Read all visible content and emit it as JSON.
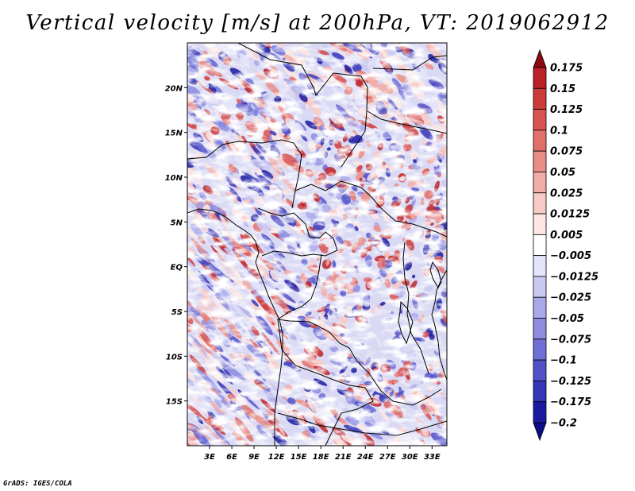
{
  "map": {
    "title": "Vertical velocity [m/s] at 200hPa, VT: 2019062912",
    "variable": "Vertical velocity",
    "units": "m/s",
    "level": "200hPa",
    "valid_time": "2019062912",
    "lat_range": [
      -20,
      25
    ],
    "lon_range": [
      0,
      35
    ],
    "lat_labels": [
      {
        "value": 20,
        "label": "20N"
      },
      {
        "value": 15,
        "label": "15N"
      },
      {
        "value": 10,
        "label": "10N"
      },
      {
        "value": 5,
        "label": "5N"
      },
      {
        "value": 0,
        "label": "EQ"
      },
      {
        "value": -5,
        "label": "5S"
      },
      {
        "value": -10,
        "label": "10S"
      },
      {
        "value": -15,
        "label": "15S"
      }
    ],
    "lon_labels": [
      {
        "value": 3,
        "label": "3E"
      },
      {
        "value": 6,
        "label": "6E"
      },
      {
        "value": 9,
        "label": "9E"
      },
      {
        "value": 12,
        "label": "12E"
      },
      {
        "value": 15,
        "label": "15E"
      },
      {
        "value": 18,
        "label": "18E"
      },
      {
        "value": 21,
        "label": "21E"
      },
      {
        "value": 24,
        "label": "24E"
      },
      {
        "value": 27,
        "label": "27E"
      },
      {
        "value": 30,
        "label": "30E"
      },
      {
        "value": 33,
        "label": "33E"
      }
    ]
  },
  "colorbar": {
    "levels": [
      {
        "label": "0.175",
        "color": "#a50f15"
      },
      {
        "label": "0.15",
        "color": "#bb2228"
      },
      {
        "label": "0.125",
        "color": "#cc3a3a"
      },
      {
        "label": "0.1",
        "color": "#d85450"
      },
      {
        "label": "0.075",
        "color": "#e2706a"
      },
      {
        "label": "0.05",
        "color": "#ea8d86"
      },
      {
        "label": "0.025",
        "color": "#f2aca6"
      },
      {
        "label": "0.0125",
        "color": "#f8cac5"
      },
      {
        "label": "0.005",
        "color": "#fde6e3"
      },
      {
        "label": "−0.005",
        "color": "#ffffff"
      },
      {
        "label": "−0.0125",
        "color": "#e4e4fa"
      },
      {
        "label": "−0.025",
        "color": "#c8c8f2"
      },
      {
        "label": "−0.05",
        "color": "#aaaaea"
      },
      {
        "label": "−0.075",
        "color": "#8c8ce0"
      },
      {
        "label": "−0.1",
        "color": "#6f6fd6"
      },
      {
        "label": "−0.125",
        "color": "#5252c8"
      },
      {
        "label": "−0.175",
        "color": "#3535b8"
      },
      {
        "label": "−0.2",
        "color": "#1a1aa0"
      }
    ],
    "top_arrow_color": "#8b0a12",
    "bottom_arrow_color": "#0d0d85"
  },
  "credit": "GrADS: IGES/COLA"
}
